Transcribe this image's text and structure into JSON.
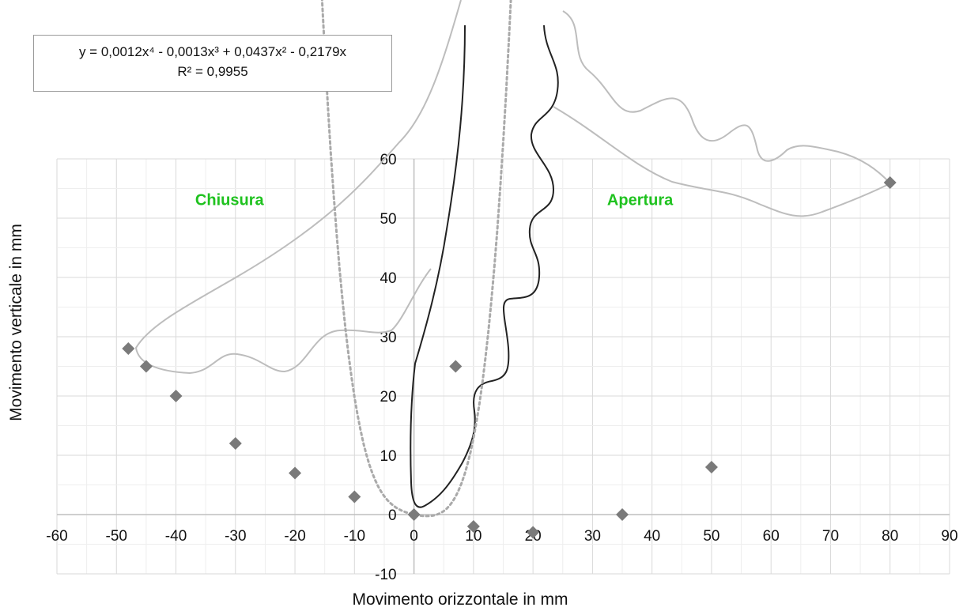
{
  "chart_data": {
    "type": "scatter",
    "title": "",
    "xlabel": "Movimento orizzontale in mm",
    "ylabel": "Movimento verticale in mm",
    "xlim": [
      -60,
      90
    ],
    "ylim": [
      -10,
      60
    ],
    "x_ticks": [
      -60,
      -50,
      -40,
      -30,
      -20,
      -10,
      0,
      10,
      20,
      30,
      40,
      50,
      60,
      70,
      80,
      90
    ],
    "y_ticks": [
      -10,
      0,
      10,
      20,
      30,
      40,
      50,
      60
    ],
    "grid": true,
    "annotations": [
      {
        "text": "Chiusura",
        "x": -31,
        "y": 53,
        "color": "#1fc21f"
      },
      {
        "text": "Apertura",
        "x": 38,
        "y": 53,
        "color": "#1fc21f"
      }
    ],
    "equation_box": {
      "equation": "y = 0,0012x⁴ - 0,0013x³ + 0,0437x² - 0,2179x",
      "r2": "R² = 0,9955"
    },
    "series": [
      {
        "marker": "diamond",
        "color": "#7a7a7a",
        "points": [
          [
            -48,
            28
          ],
          [
            -45,
            25
          ],
          [
            -40,
            20
          ],
          [
            -30,
            12
          ],
          [
            -20,
            7
          ],
          [
            -10,
            3
          ],
          [
            0,
            0
          ],
          [
            7,
            25
          ],
          [
            10,
            -2
          ],
          [
            20,
            -3
          ],
          [
            35,
            0
          ],
          [
            50,
            8
          ],
          [
            80,
            56
          ]
        ]
      }
    ],
    "trendline": {
      "type": "polynomial",
      "coefficients": [
        0.0012,
        -0.0013,
        0.0437,
        -0.2179,
        0
      ],
      "style": "dotted",
      "color": "#aaaaaa"
    }
  }
}
